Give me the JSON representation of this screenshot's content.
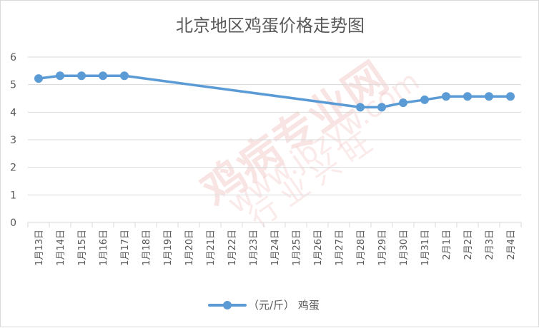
{
  "colors": {
    "series": "#5b9bd5",
    "grid": "#d9d9d9",
    "text": "#595959",
    "watermark": "#f3c4c4"
  },
  "watermark": {
    "main": "鸡病专业网",
    "url": "www.jbzyw.com",
    "sub": "行 业 兴 旺"
  },
  "chart_data": {
    "type": "line",
    "title": "北京地区鸡蛋价格走势图",
    "xlabel": "",
    "ylabel": "",
    "ylim": [
      0,
      6
    ],
    "yticks": [
      "0",
      "1",
      "2",
      "3",
      "4",
      "5",
      "6"
    ],
    "grid": true,
    "legend_position": "bottom",
    "categories": [
      "1月13日",
      "1月14日",
      "1月15日",
      "1月16日",
      "1月17日",
      "1月18日",
      "1月19日",
      "1月20日",
      "1月21日",
      "1月22日",
      "1月23日",
      "1月24日",
      "1月25日",
      "1月26日",
      "1月27日",
      "1月28日",
      "1月29日",
      "1月30日",
      "1月31日",
      "2月1日",
      "2月2日",
      "2月3日",
      "2月4日"
    ],
    "series": [
      {
        "name": "（元/斤） 鸡蛋",
        "values": [
          5.22,
          5.32,
          5.32,
          5.32,
          5.32,
          null,
          null,
          null,
          null,
          null,
          null,
          null,
          null,
          null,
          null,
          4.18,
          4.18,
          4.34,
          4.45,
          4.57,
          4.57,
          4.57,
          4.57
        ]
      }
    ]
  }
}
